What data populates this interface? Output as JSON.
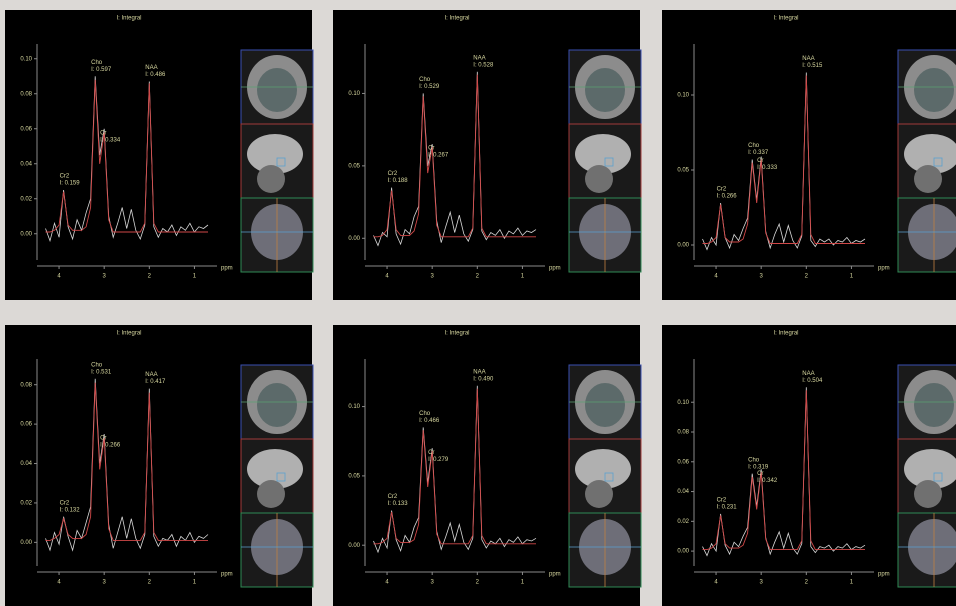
{
  "chart_data": [
    {
      "type": "line",
      "title": "I: Integral",
      "xlabel": "ppm",
      "x": [
        4.3,
        4.2,
        4.1,
        4.0,
        3.9,
        3.8,
        3.7,
        3.6,
        3.5,
        3.4,
        3.3,
        3.2,
        3.1,
        3.0,
        2.9,
        2.8,
        2.7,
        2.6,
        2.5,
        2.4,
        2.3,
        2.2,
        2.1,
        2.0,
        1.9,
        1.8,
        1.7,
        1.6,
        1.5,
        1.4,
        1.3,
        1.2,
        1.1,
        1.0,
        0.9,
        0.8,
        0.7
      ],
      "xlim": [
        4.4,
        0.5
      ],
      "xticks": [
        4,
        3,
        2,
        1
      ],
      "ylim": [
        -0.015,
        0.105
      ],
      "yticks": [
        {
          "value": 0,
          "label": "0.00"
        },
        {
          "value": 0.02,
          "label": "0.02"
        },
        {
          "value": 0.04,
          "label": "0.04"
        },
        {
          "value": 0.06,
          "label": "0.06"
        },
        {
          "value": 0.08,
          "label": "0.08"
        },
        {
          "value": 0.1,
          "label": "0.10"
        }
      ],
      "series": [
        {
          "color": "#d8d8d8",
          "values": [
            0.003,
            -0.004,
            0.006,
            -0.002,
            0.025,
            0.004,
            -0.003,
            0.008,
            0.002,
            0.012,
            0.02,
            0.09,
            0.045,
            0.06,
            0.01,
            -0.002,
            0.006,
            0.015,
            0.003,
            0.014,
            0.002,
            -0.003,
            0.005,
            0.087,
            0.004,
            -0.002,
            0.003,
            0.001,
            0.005,
            -0.001,
            0.004,
            0.002,
            0.006,
            0.001,
            0.004,
            0.003,
            0.005
          ]
        },
        {
          "color": "#d04848",
          "values": [
            0.001,
            0.001,
            0.002,
            0.005,
            0.024,
            0.005,
            0.002,
            0.002,
            0.002,
            0.004,
            0.015,
            0.088,
            0.04,
            0.058,
            0.008,
            0.001,
            0.001,
            0.001,
            0.001,
            0.001,
            0.001,
            0.001,
            0.006,
            0.086,
            0.006,
            0.001,
            0.001,
            0.001,
            0.001,
            0.001,
            0.001,
            0.001,
            0.001,
            0.001,
            0.001,
            0.001,
            0.001
          ]
        }
      ],
      "annotations": [
        {
          "label": "Cr2",
          "text": "I: 0.159",
          "x": 3.9
        },
        {
          "label": "Cho",
          "text": "I: 0.597",
          "x": 3.2
        },
        {
          "label": "Cr",
          "text": "I: 0.334",
          "x": 3.0
        },
        {
          "label": "NAA",
          "text": "I: 0.486",
          "x": 2.0
        }
      ]
    },
    {
      "type": "line",
      "title": "I: Integral",
      "xlabel": "ppm",
      "x": [
        4.3,
        4.2,
        4.1,
        4.0,
        3.9,
        3.8,
        3.7,
        3.6,
        3.5,
        3.4,
        3.3,
        3.2,
        3.1,
        3.0,
        2.9,
        2.8,
        2.7,
        2.6,
        2.5,
        2.4,
        2.3,
        2.2,
        2.1,
        2.0,
        1.9,
        1.8,
        1.7,
        1.6,
        1.5,
        1.4,
        1.3,
        1.2,
        1.1,
        1.0,
        0.9,
        0.8,
        0.7
      ],
      "xlim": [
        4.4,
        0.5
      ],
      "xticks": [
        4,
        3,
        2,
        1
      ],
      "ylim": [
        -0.015,
        0.13
      ],
      "yticks": [
        {
          "value": 0,
          "label": "0.00"
        },
        {
          "value": 0.05,
          "label": "0.05"
        },
        {
          "value": 0.1,
          "label": "0.10"
        }
      ],
      "series": [
        {
          "color": "#d8d8d8",
          "values": [
            0.002,
            -0.005,
            0.004,
            0.001,
            0.035,
            0.003,
            -0.004,
            0.006,
            0.003,
            0.015,
            0.022,
            0.1,
            0.05,
            0.065,
            0.012,
            -0.003,
            0.008,
            0.018,
            0.004,
            0.016,
            0.003,
            -0.002,
            0.006,
            0.115,
            0.005,
            -0.001,
            0.004,
            0.002,
            0.006,
            0.0,
            0.005,
            0.003,
            0.007,
            0.002,
            0.005,
            0.004,
            0.006
          ]
        },
        {
          "color": "#d04848",
          "values": [
            0.001,
            0.001,
            0.002,
            0.006,
            0.033,
            0.006,
            0.002,
            0.002,
            0.002,
            0.005,
            0.017,
            0.098,
            0.045,
            0.063,
            0.009,
            0.001,
            0.001,
            0.001,
            0.001,
            0.001,
            0.001,
            0.001,
            0.007,
            0.113,
            0.007,
            0.001,
            0.001,
            0.001,
            0.001,
            0.001,
            0.001,
            0.001,
            0.001,
            0.001,
            0.001,
            0.001,
            0.001
          ]
        }
      ],
      "annotations": [
        {
          "label": "Cr2",
          "text": "I: 0.188",
          "x": 3.9
        },
        {
          "label": "Cho",
          "text": "I: 0.529",
          "x": 3.2
        },
        {
          "label": "Cr",
          "text": "I: 0.267",
          "x": 3.0
        },
        {
          "label": "NAA",
          "text": "I: 0.528",
          "x": 2.0
        }
      ]
    },
    {
      "type": "line",
      "title": "I: Integral",
      "xlabel": "ppm",
      "x": [
        4.3,
        4.2,
        4.1,
        4.0,
        3.9,
        3.8,
        3.7,
        3.6,
        3.5,
        3.4,
        3.3,
        3.2,
        3.1,
        3.0,
        2.9,
        2.8,
        2.7,
        2.6,
        2.5,
        2.4,
        2.3,
        2.2,
        2.1,
        2.0,
        1.9,
        1.8,
        1.7,
        1.6,
        1.5,
        1.4,
        1.3,
        1.2,
        1.1,
        1.0,
        0.9,
        0.8,
        0.7
      ],
      "xlim": [
        4.4,
        0.5
      ],
      "xticks": [
        4,
        3,
        2,
        1
      ],
      "ylim": [
        -0.01,
        0.13
      ],
      "yticks": [
        {
          "value": 0,
          "label": "0.00"
        },
        {
          "value": 0.05,
          "label": "0.05"
        },
        {
          "value": 0.1,
          "label": "0.10"
        }
      ],
      "series": [
        {
          "color": "#d8d8d8",
          "values": [
            0.004,
            -0.003,
            0.005,
            0.0,
            0.028,
            0.005,
            -0.002,
            0.007,
            0.003,
            0.011,
            0.018,
            0.057,
            0.03,
            0.059,
            0.009,
            -0.002,
            0.007,
            0.014,
            0.002,
            0.013,
            0.003,
            -0.002,
            0.006,
            0.115,
            0.003,
            -0.001,
            0.004,
            0.002,
            0.004,
            0.0,
            0.003,
            0.002,
            0.005,
            0.001,
            0.003,
            0.002,
            0.004
          ]
        },
        {
          "color": "#d04848",
          "values": [
            0.001,
            0.001,
            0.002,
            0.005,
            0.027,
            0.005,
            0.002,
            0.002,
            0.002,
            0.004,
            0.014,
            0.055,
            0.028,
            0.057,
            0.008,
            0.001,
            0.001,
            0.001,
            0.001,
            0.001,
            0.001,
            0.001,
            0.007,
            0.113,
            0.007,
            0.001,
            0.001,
            0.001,
            0.001,
            0.001,
            0.001,
            0.001,
            0.001,
            0.001,
            0.001,
            0.001,
            0.001
          ]
        }
      ],
      "annotations": [
        {
          "label": "Cr2",
          "text": "I: 0.266",
          "x": 3.9
        },
        {
          "label": "Cho",
          "text": "I: 0.337",
          "x": 3.2
        },
        {
          "label": "Cr",
          "text": "I: 0.333",
          "x": 3.0
        },
        {
          "label": "NAA",
          "text": "I: 0.515",
          "x": 2.0
        }
      ]
    },
    {
      "type": "line",
      "title": "I: Integral",
      "xlabel": "ppm",
      "x": [
        4.3,
        4.2,
        4.1,
        4.0,
        3.9,
        3.8,
        3.7,
        3.6,
        3.5,
        3.4,
        3.3,
        3.2,
        3.1,
        3.0,
        2.9,
        2.8,
        2.7,
        2.6,
        2.5,
        2.4,
        2.3,
        2.2,
        2.1,
        2.0,
        1.9,
        1.8,
        1.7,
        1.6,
        1.5,
        1.4,
        1.3,
        1.2,
        1.1,
        1.0,
        0.9,
        0.8,
        0.7
      ],
      "xlim": [
        4.4,
        0.5
      ],
      "xticks": [
        4,
        3,
        2,
        1
      ],
      "ylim": [
        -0.012,
        0.09
      ],
      "yticks": [
        {
          "value": 0,
          "label": "0.00"
        },
        {
          "value": 0.02,
          "label": "0.02"
        },
        {
          "value": 0.04,
          "label": "0.04"
        },
        {
          "value": 0.06,
          "label": "0.06"
        },
        {
          "value": 0.08,
          "label": "0.08"
        }
      ],
      "series": [
        {
          "color": "#d8d8d8",
          "values": [
            0.002,
            -0.004,
            0.005,
            -0.001,
            0.013,
            0.003,
            -0.004,
            0.006,
            0.002,
            0.01,
            0.018,
            0.083,
            0.04,
            0.055,
            0.009,
            -0.003,
            0.005,
            0.013,
            0.002,
            0.012,
            0.002,
            -0.003,
            0.004,
            0.078,
            0.003,
            -0.002,
            0.002,
            0.001,
            0.004,
            -0.002,
            0.003,
            0.001,
            0.005,
            0.0,
            0.003,
            0.002,
            0.004
          ]
        },
        {
          "color": "#d04848",
          "values": [
            0.001,
            0.001,
            0.002,
            0.004,
            0.012,
            0.004,
            0.002,
            0.002,
            0.002,
            0.004,
            0.013,
            0.081,
            0.037,
            0.053,
            0.007,
            0.001,
            0.001,
            0.001,
            0.001,
            0.001,
            0.001,
            0.001,
            0.005,
            0.076,
            0.005,
            0.001,
            0.001,
            0.001,
            0.001,
            0.001,
            0.001,
            0.001,
            0.001,
            0.001,
            0.001,
            0.001,
            0.001
          ]
        }
      ],
      "annotations": [
        {
          "label": "Cr2",
          "text": "I: 0.132",
          "x": 3.9
        },
        {
          "label": "Cho",
          "text": "I: 0.531",
          "x": 3.2
        },
        {
          "label": "Cr",
          "text": "I: 0.266",
          "x": 3.0
        },
        {
          "label": "NAA",
          "text": "I: 0.417",
          "x": 2.0
        }
      ]
    },
    {
      "type": "line",
      "title": "I: Integral",
      "xlabel": "ppm",
      "x": [
        4.3,
        4.2,
        4.1,
        4.0,
        3.9,
        3.8,
        3.7,
        3.6,
        3.5,
        3.4,
        3.3,
        3.2,
        3.1,
        3.0,
        2.9,
        2.8,
        2.7,
        2.6,
        2.5,
        2.4,
        2.3,
        2.2,
        2.1,
        2.0,
        1.9,
        1.8,
        1.7,
        1.6,
        1.5,
        1.4,
        1.3,
        1.2,
        1.1,
        1.0,
        0.9,
        0.8,
        0.7
      ],
      "xlim": [
        4.4,
        0.5
      ],
      "xticks": [
        4,
        3,
        2,
        1
      ],
      "ylim": [
        -0.015,
        0.13
      ],
      "yticks": [
        {
          "value": 0,
          "label": "0.00"
        },
        {
          "value": 0.05,
          "label": "0.05"
        },
        {
          "value": 0.1,
          "label": "0.10"
        }
      ],
      "series": [
        {
          "color": "#d8d8d8",
          "values": [
            0.003,
            -0.005,
            0.005,
            -0.002,
            0.025,
            0.004,
            -0.004,
            0.007,
            0.002,
            0.013,
            0.02,
            0.085,
            0.045,
            0.07,
            0.01,
            -0.003,
            0.006,
            0.016,
            0.003,
            0.015,
            0.002,
            -0.003,
            0.005,
            0.115,
            0.004,
            -0.002,
            0.003,
            0.001,
            0.005,
            -0.001,
            0.004,
            0.002,
            0.006,
            0.001,
            0.004,
            0.003,
            0.005
          ]
        },
        {
          "color": "#d04848",
          "values": [
            0.001,
            0.001,
            0.002,
            0.005,
            0.024,
            0.005,
            0.002,
            0.002,
            0.002,
            0.004,
            0.015,
            0.083,
            0.042,
            0.068,
            0.008,
            0.001,
            0.001,
            0.001,
            0.001,
            0.001,
            0.001,
            0.001,
            0.007,
            0.113,
            0.007,
            0.001,
            0.001,
            0.001,
            0.001,
            0.001,
            0.001,
            0.001,
            0.001,
            0.001,
            0.001,
            0.001,
            0.001
          ]
        }
      ],
      "annotations": [
        {
          "label": "Cr2",
          "text": "I: 0.133",
          "x": 3.9
        },
        {
          "label": "Cho",
          "text": "I: 0.466",
          "x": 3.2
        },
        {
          "label": "Cr",
          "text": "I: 0.279",
          "x": 3.0
        },
        {
          "label": "NAA",
          "text": "I: 0.490",
          "x": 2.0
        }
      ]
    },
    {
      "type": "line",
      "title": "I: Integral",
      "xlabel": "ppm",
      "x": [
        4.3,
        4.2,
        4.1,
        4.0,
        3.9,
        3.8,
        3.7,
        3.6,
        3.5,
        3.4,
        3.3,
        3.2,
        3.1,
        3.0,
        2.9,
        2.8,
        2.7,
        2.6,
        2.5,
        2.4,
        2.3,
        2.2,
        2.1,
        2.0,
        1.9,
        1.8,
        1.7,
        1.6,
        1.5,
        1.4,
        1.3,
        1.2,
        1.1,
        1.0,
        0.9,
        0.8,
        0.7
      ],
      "xlim": [
        4.4,
        0.5
      ],
      "xticks": [
        4,
        3,
        2,
        1
      ],
      "ylim": [
        -0.01,
        0.125
      ],
      "yticks": [
        {
          "value": 0,
          "label": "0.00"
        },
        {
          "value": 0.02,
          "label": "0.02"
        },
        {
          "value": 0.04,
          "label": "0.04"
        },
        {
          "value": 0.06,
          "label": "0.06"
        },
        {
          "value": 0.08,
          "label": "0.08"
        },
        {
          "value": 0.1,
          "label": "0.10"
        }
      ],
      "series": [
        {
          "color": "#d8d8d8",
          "values": [
            0.003,
            -0.003,
            0.005,
            0.0,
            0.025,
            0.004,
            -0.002,
            0.006,
            0.003,
            0.01,
            0.016,
            0.052,
            0.03,
            0.055,
            0.009,
            -0.002,
            0.006,
            0.013,
            0.002,
            0.012,
            0.002,
            -0.002,
            0.005,
            0.11,
            0.003,
            -0.001,
            0.003,
            0.002,
            0.004,
            0.0,
            0.003,
            0.002,
            0.005,
            0.001,
            0.003,
            0.002,
            0.004
          ]
        },
        {
          "color": "#d04848",
          "values": [
            0.001,
            0.001,
            0.002,
            0.005,
            0.024,
            0.005,
            0.002,
            0.002,
            0.002,
            0.004,
            0.012,
            0.05,
            0.028,
            0.053,
            0.008,
            0.001,
            0.001,
            0.001,
            0.001,
            0.001,
            0.001,
            0.001,
            0.007,
            0.108,
            0.007,
            0.001,
            0.001,
            0.001,
            0.001,
            0.001,
            0.001,
            0.001,
            0.001,
            0.001,
            0.001,
            0.001,
            0.001
          ]
        }
      ],
      "annotations": [
        {
          "label": "Cr2",
          "text": "I: 0.231",
          "x": 3.9
        },
        {
          "label": "Cho",
          "text": "I: 0.319",
          "x": 3.2
        },
        {
          "label": "Cr",
          "text": "I: 0.342",
          "x": 3.0
        },
        {
          "label": "NAA",
          "text": "I: 0.504",
          "x": 2.0
        }
      ]
    }
  ]
}
